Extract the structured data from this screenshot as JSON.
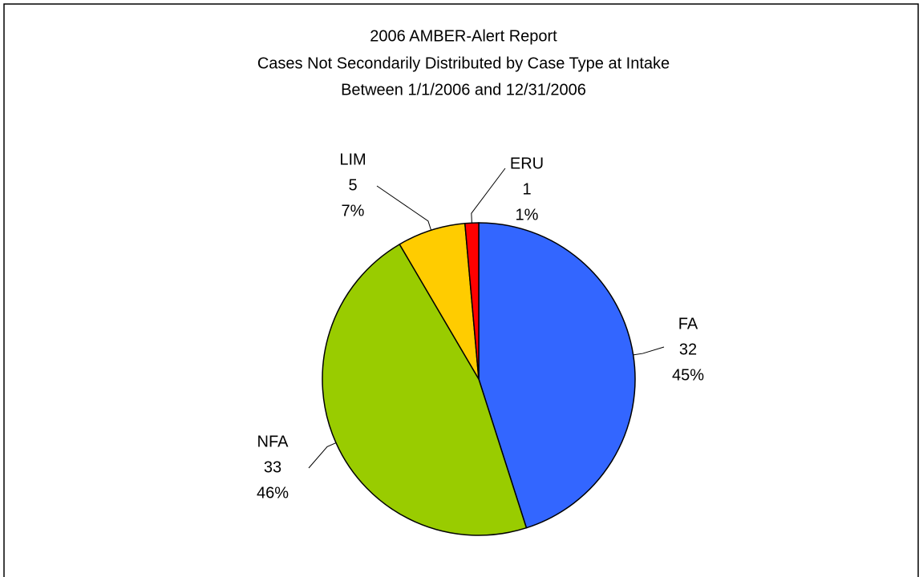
{
  "chart_data": {
    "type": "pie",
    "title": [
      "2006 AMBER-Alert Report",
      "Cases Not Secondarily Distributed by Case Type at Intake",
      "Between 1/1/2006 and 12/31/2006"
    ],
    "categories": [
      "FA",
      "NFA",
      "LIM",
      "ERU"
    ],
    "values": [
      32,
      33,
      5,
      1
    ],
    "percent_labels": [
      "45%",
      "46%",
      "7%",
      "1%"
    ],
    "colors": [
      "#3366ff",
      "#99cc00",
      "#ffcc00",
      "#ff0000"
    ]
  }
}
